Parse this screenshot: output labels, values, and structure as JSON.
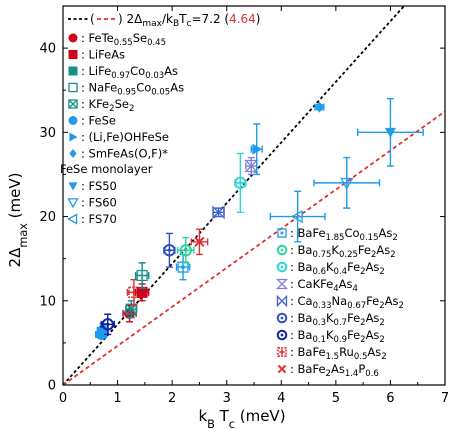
{
  "chart_data": {
    "type": "scatter",
    "xlabel": "k_B T_c (meV)",
    "ylabel": "2Δ_max (meV)",
    "xlim": [
      0,
      7
    ],
    "ylim": [
      0,
      45
    ],
    "xticks": [
      0,
      1,
      2,
      3,
      4,
      5,
      6,
      7
    ],
    "yticks": [
      0,
      10,
      20,
      30,
      40
    ],
    "grid": false,
    "lines": [
      {
        "name": "2Δmax/kBTc=7.2",
        "slope": 7.2,
        "color": "#000000",
        "style": "dotted"
      },
      {
        "name": "4.64",
        "slope": 4.64,
        "color": "#e03030",
        "style": "dashed"
      }
    ],
    "top_legend": {
      "prefix": "(",
      "sep": ") ",
      "formula": "2Δ_max/k_BT_c=7.2 (",
      "red_value": "4.64",
      "suffix": ")"
    },
    "left_legend": {
      "entries": [
        {
          "label": ": FeTe0.55Se0.45",
          "marker": "circle",
          "color": "#d0021b"
        },
        {
          "label": ": LiFeAs",
          "marker": "square",
          "color": "#d0021b"
        },
        {
          "label": ": LiFe0.97Co0.03As",
          "marker": "square",
          "color": "#13908a"
        },
        {
          "label": ": NaFe0.95Co0.05As",
          "marker": "square-open",
          "color": "#13908a"
        },
        {
          "label": ": KFe2Se2",
          "marker": "square-x",
          "color": "#13908a"
        },
        {
          "label": ": FeSe",
          "marker": "circle",
          "color": "#1e9be9"
        },
        {
          "label": ": (Li,Fe)OHFeSe",
          "marker": "triangle-right",
          "color": "#1e9be9"
        },
        {
          "label": ": SmFeAs(O,F)*",
          "marker": "diamond",
          "color": "#1e9be9"
        }
      ],
      "group_title": "FeSe monolayer",
      "group_entries": [
        {
          "label": ": FS50",
          "marker": "triangle-down",
          "color": "#1e9be9"
        },
        {
          "label": ": FS60",
          "marker": "triangle-down-open",
          "color": "#1e9be9"
        },
        {
          "label": ": FS70",
          "marker": "triangle-left-open",
          "color": "#1e9be9"
        }
      ]
    },
    "right_legend": {
      "entries": [
        {
          "label": ": BaFe1.85Co0.15As2",
          "marker": "square-dot",
          "color": "#1e9be9"
        },
        {
          "label": ": Ba0.75K0.25Fe2As2",
          "marker": "circle-dot",
          "color": "#2fd39a"
        },
        {
          "label": ": Ba0.6K0.4Fe2As2",
          "marker": "circle-dot",
          "color": "#2fd6d6"
        },
        {
          "label": ": CaKFe4As4",
          "marker": "hourglass",
          "color": "#8080d8"
        },
        {
          "label": ": Ca0.33Na0.67Fe2As2",
          "marker": "bowtie",
          "color": "#4060d0"
        },
        {
          "label": ": Ba0.3K0.7Fe2As2",
          "marker": "circle-dot",
          "color": "#3050c0"
        },
        {
          "label": ": Ba0.1K0.9Fe2As2",
          "marker": "circle-dot",
          "color": "#1020a0"
        },
        {
          "label": ": BaFe1.5Ru0.5As2",
          "marker": "plus-square",
          "color": "#e03030"
        },
        {
          "label": ": BaFe2As1.4P0.6",
          "marker": "x",
          "color": "#e03030"
        }
      ]
    },
    "points": [
      {
        "x": 0.7,
        "y": 6,
        "xerr": 0.1,
        "yerr": 0.5,
        "marker": "hexagon",
        "color": "#1e9be9"
      },
      {
        "x": 0.73,
        "y": 6.5,
        "xerr": 0.1,
        "yerr": 0.8,
        "marker": "circle",
        "color": "#1e9be9"
      },
      {
        "x": 0.82,
        "y": 7.2,
        "xerr": 0.12,
        "yerr": 1.2,
        "marker": "circle-dot",
        "color": "#1020a0"
      },
      {
        "x": 1.22,
        "y": 8.5,
        "xerr": 0.12,
        "yerr": 1.0,
        "marker": "circle",
        "color": "#d0021b"
      },
      {
        "x": 1.25,
        "y": 9,
        "xerr": 0.1,
        "yerr": 1.0,
        "marker": "square-x",
        "color": "#13908a"
      },
      {
        "x": 1.3,
        "y": 11,
        "xerr": 0.12,
        "yerr": 1.5,
        "marker": "plus-square",
        "color": "#e03030"
      },
      {
        "x": 1.45,
        "y": 11,
        "xerr": 0.12,
        "yerr": 1.0,
        "marker": "square",
        "color": "#d0021b"
      },
      {
        "x": 1.45,
        "y": 13,
        "xerr": 0.12,
        "yerr": 1.5,
        "marker": "square-open",
        "color": "#13908a"
      },
      {
        "x": 1.95,
        "y": 16,
        "xerr": 0.1,
        "yerr": 2.0,
        "marker": "circle-dot",
        "color": "#3050c0"
      },
      {
        "x": 2.2,
        "y": 14,
        "xerr": 0.12,
        "yerr": 1.5,
        "marker": "square-dot",
        "color": "#1e9be9"
      },
      {
        "x": 2.25,
        "y": 16,
        "xerr": 0.15,
        "yerr": 1.5,
        "marker": "circle-dot",
        "color": "#2fd39a"
      },
      {
        "x": 2.5,
        "y": 17,
        "xerr": 0.15,
        "yerr": 1.5,
        "marker": "x",
        "color": "#e03030"
      },
      {
        "x": 2.85,
        "y": 20.5,
        "xerr": 0.1,
        "yerr": 0.5,
        "marker": "bowtie",
        "color": "#4060d0"
      },
      {
        "x": 3.25,
        "y": 24,
        "xerr": 0.1,
        "yerr": 3.5,
        "marker": "circle-dot",
        "color": "#2fd6d6"
      },
      {
        "x": 3.45,
        "y": 26,
        "xerr": 0.1,
        "yerr": 1.0,
        "marker": "hourglass",
        "color": "#8080d8"
      },
      {
        "x": 3.55,
        "y": 28,
        "xerr": 0.1,
        "yerr": 3.0,
        "marker": "triangle-right",
        "color": "#1e9be9"
      },
      {
        "x": 4.7,
        "y": 33,
        "xerr": 0.08,
        "yerr": 0.3,
        "marker": "diamond",
        "color": "#1e9be9"
      },
      {
        "x": 4.3,
        "y": 20,
        "xerr": 0.5,
        "yerr": 3.0,
        "marker": "triangle-left-open",
        "color": "#1e9be9"
      },
      {
        "x": 5.2,
        "y": 24,
        "xerr": 0.6,
        "yerr": 3.0,
        "marker": "triangle-down-open",
        "color": "#1e9be9"
      },
      {
        "x": 6.0,
        "y": 30,
        "xerr": 0.6,
        "yerr": 4.0,
        "marker": "triangle-down",
        "color": "#1e9be9"
      }
    ]
  }
}
